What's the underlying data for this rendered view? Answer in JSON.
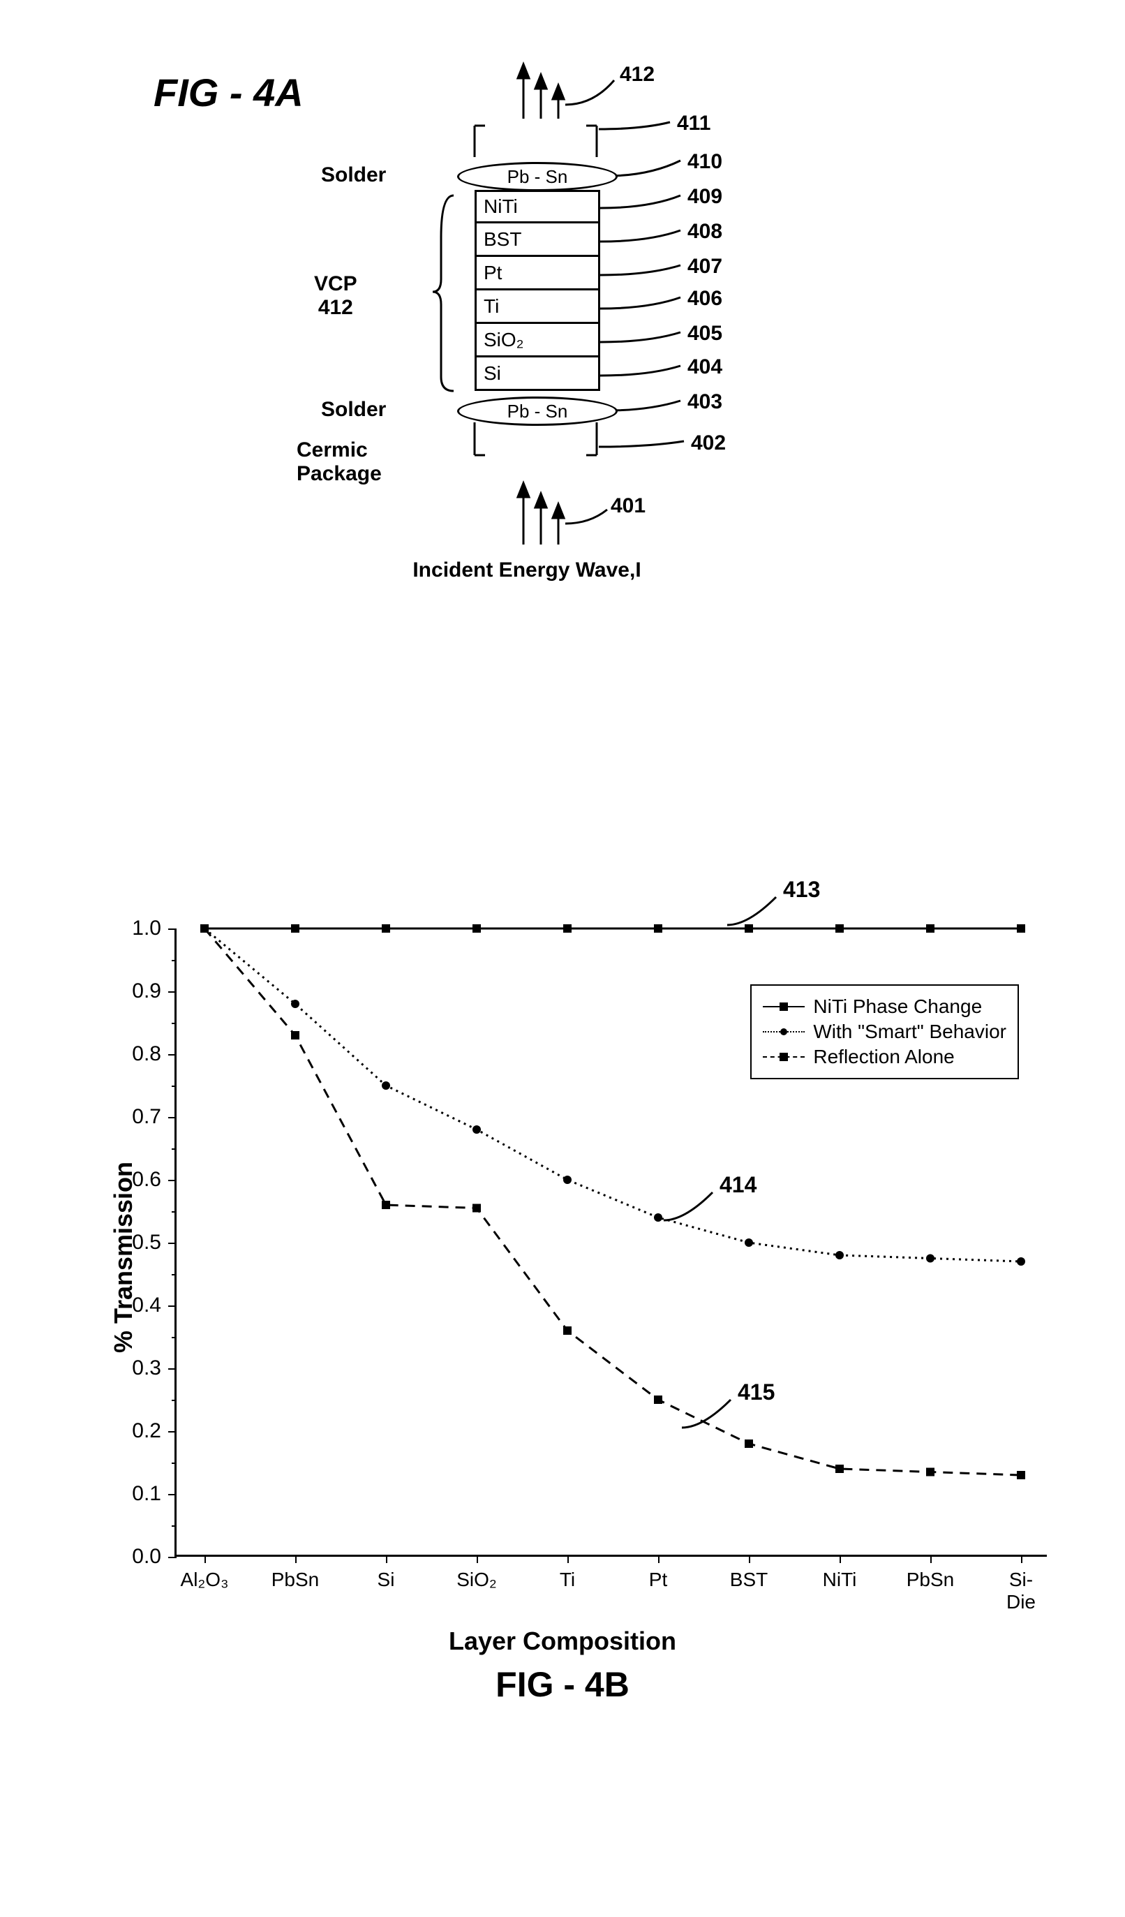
{
  "fig_a": {
    "title": "FIG - 4A",
    "top_arrows_ref": "412",
    "top_package_ref": "411",
    "layers": [
      {
        "label": "Pb - Sn",
        "ref": "410",
        "type": "ellipse",
        "side": "Solder"
      },
      {
        "label": "NiTi",
        "ref": "409",
        "type": "box"
      },
      {
        "label": "BST",
        "ref": "408",
        "type": "box"
      },
      {
        "label": "Pt",
        "ref": "407",
        "type": "box"
      },
      {
        "label": "Ti",
        "ref": "406",
        "type": "box"
      },
      {
        "label": "SiO₂",
        "ref": "405",
        "type": "box"
      },
      {
        "label": "Si",
        "ref": "404",
        "type": "box"
      },
      {
        "label": "Pb - Sn",
        "ref": "403",
        "type": "ellipse",
        "side": "Solder"
      }
    ],
    "vcp_label": "VCP\n412",
    "bottom_package_ref": "402",
    "bottom_package_label": "Cermic\nPackage",
    "bottom_arrows_ref": "401",
    "incident_label": "Incident Energy Wave,I"
  },
  "fig_b": {
    "ylabel": "% Transmission",
    "xlabel": "Layer Composition",
    "title": "FIG - 4B",
    "ylim": [
      0.0,
      1.0
    ],
    "ytick_step": 0.1,
    "categories": [
      "Al₂O₃",
      "PbSn",
      "Si",
      "SiO₂",
      "Ti",
      "Pt",
      "BST",
      "NiTi",
      "PbSn",
      "Si-\nDie"
    ],
    "series": [
      {
        "name": "NiTi Phase Change",
        "ref": "413",
        "color": "#000000",
        "linestyle": "solid",
        "marker": "square",
        "values": [
          1.0,
          1.0,
          1.0,
          1.0,
          1.0,
          1.0,
          1.0,
          1.0,
          1.0,
          1.0
        ]
      },
      {
        "name": "With \"Smart\" Behavior",
        "ref": "414",
        "color": "#000000",
        "linestyle": "dotted",
        "marker": "circle",
        "values": [
          1.0,
          0.88,
          0.75,
          0.68,
          0.6,
          0.54,
          0.5,
          0.48,
          0.475,
          0.47
        ]
      },
      {
        "name": "Reflection Alone",
        "ref": "415",
        "color": "#000000",
        "linestyle": "dashed",
        "marker": "square",
        "values": [
          1.0,
          0.83,
          0.56,
          0.555,
          0.36,
          0.25,
          0.18,
          0.14,
          0.135,
          0.13
        ]
      }
    ],
    "legend_items": [
      "NiTi Phase Change",
      "With \"Smart\" Behavior",
      "Reflection Alone"
    ],
    "callouts": {
      "413": {
        "x_idx": 6.3,
        "y": 1.05
      },
      "414": {
        "x_idx": 5.6,
        "y": 0.58
      },
      "415": {
        "x_idx": 5.8,
        "y": 0.25
      }
    }
  }
}
